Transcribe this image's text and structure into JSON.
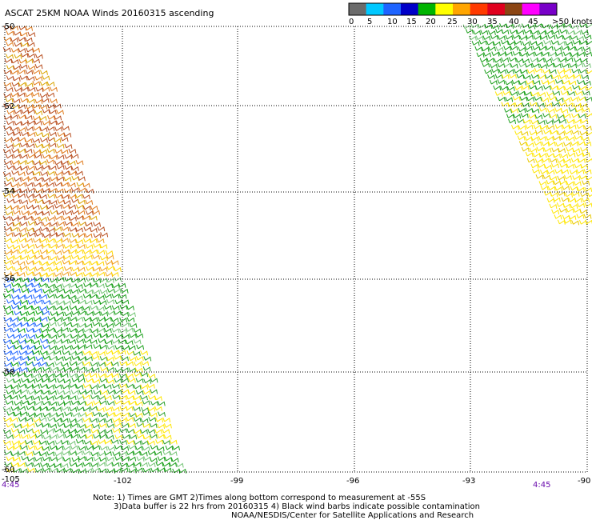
{
  "title": "ASCAT 25KM NOAA Winds 20160315 ascending",
  "colorbar": {
    "labels": [
      "0",
      "5",
      "10",
      "15",
      "20",
      "25",
      "30",
      "35",
      "40",
      "45",
      ">50 knots"
    ],
    "colors": [
      "#6b6b6b",
      "#00c8ff",
      "#1e64ff",
      "#0000c8",
      "#00b400",
      "#ffff00",
      "#ffa500",
      "#ff3a00",
      "#e0001e",
      "#8b4513",
      "#ff00ff",
      "#7800c8"
    ]
  },
  "map": {
    "lat_range": [
      -60,
      -50
    ],
    "lon_range": [
      -105,
      -90
    ],
    "lat_labels": [
      "-50",
      "-52",
      "-54",
      "-56",
      "-58",
      "-60"
    ],
    "lon_labels": [
      "-105",
      "-102",
      "-99",
      "-96",
      "-93",
      "-90"
    ],
    "times": [
      "4:45",
      "4:45"
    ]
  },
  "notes": [
    "Note: 1) Times are GMT 2)Times along bottom correspond to measurement at -55S",
    "3)Data buffer is 22 hrs from 20160315 4) Black wind barbs indicate possible contamination",
    "NOAA/NESDIS/Center for Satellite Applications and Research"
  ]
}
